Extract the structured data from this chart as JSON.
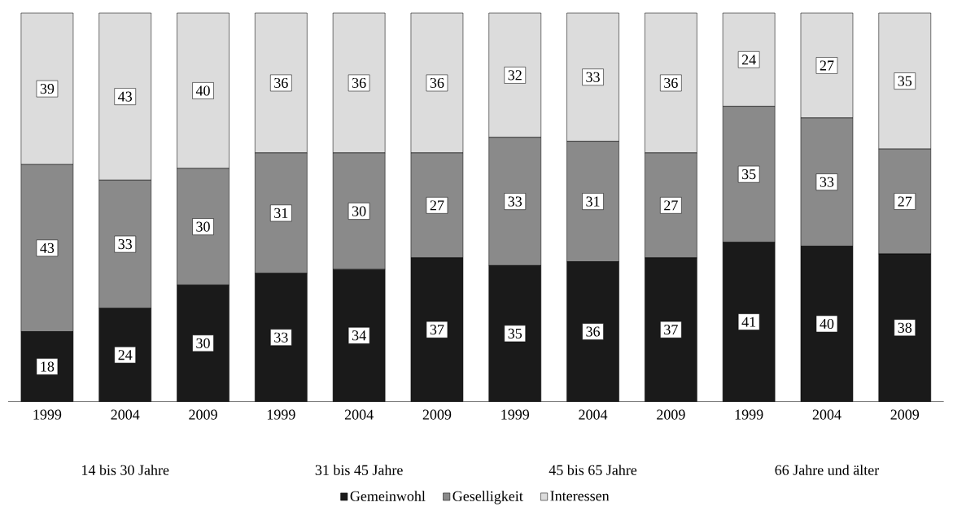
{
  "chart_data": {
    "type": "bar",
    "stacked": true,
    "data_labels": true,
    "legend": "bottom",
    "tick_labels": "x",
    "categories": [
      "1999",
      "2004",
      "2009",
      "1999",
      "2004",
      "2009",
      "1999",
      "2004",
      "2009",
      "1999",
      "2004",
      "2009"
    ],
    "annotations": [
      "14 bis 30 Jahre",
      "31 bis 45 Jahre",
      "45 bis 65 Jahre",
      "66 Jahre und älter"
    ],
    "series": [
      {
        "name": "Gemeinwohl",
        "color": "#1a1a1a",
        "values": [
          18,
          24,
          30,
          33,
          34,
          37,
          35,
          36,
          37,
          41,
          40,
          38
        ]
      },
      {
        "name": "Geselligkeit",
        "color": "#8a8a8a",
        "values": [
          43,
          33,
          30,
          31,
          30,
          27,
          33,
          31,
          27,
          35,
          33,
          27
        ]
      },
      {
        "name": "Interessen",
        "color": "#dcdcdc",
        "values": [
          39,
          43,
          40,
          36,
          36,
          36,
          32,
          33,
          36,
          24,
          27,
          35
        ]
      }
    ]
  }
}
